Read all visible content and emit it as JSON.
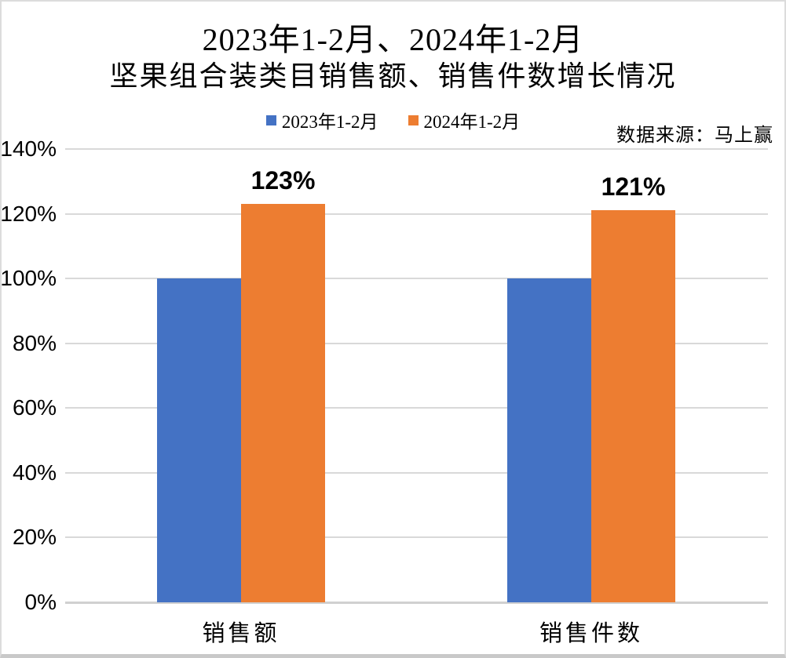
{
  "page": {
    "title_line1": "2023年1-2月、2024年1-2月",
    "title_line2": "坚果组合装类目销售额、销售件数增长情况",
    "source_note": "数据来源：马上赢"
  },
  "legend": {
    "items": [
      {
        "label": "2023年1-2月",
        "color": "#4472C4"
      },
      {
        "label": "2024年1-2月",
        "color": "#ED7D31"
      }
    ]
  },
  "chart_data": {
    "type": "bar",
    "title": "2023年1-2月、2024年1-2月 坚果组合装类目销售额、销售件数增长情况",
    "categories": [
      "销售额",
      "销售件数"
    ],
    "series": [
      {
        "name": "2023年1-2月",
        "color": "#4472C4",
        "values": [
          100,
          100
        ],
        "data_labels": null
      },
      {
        "name": "2024年1-2月",
        "color": "#ED7D31",
        "values": [
          123,
          121
        ],
        "data_labels": [
          "123%",
          "121%"
        ]
      }
    ],
    "ylim": [
      0,
      140
    ],
    "y_ticks": [
      0,
      20,
      40,
      60,
      80,
      100,
      120,
      140
    ],
    "y_tick_labels": [
      "0%",
      "20%",
      "40%",
      "60%",
      "80%",
      "100%",
      "120%",
      "140%"
    ],
    "grid": true,
    "legend_position": "top",
    "source": "数据来源：马上赢",
    "colors": {
      "grid": "#D9D9D9",
      "axis": "#D0D0D0",
      "text": "#000000"
    }
  }
}
